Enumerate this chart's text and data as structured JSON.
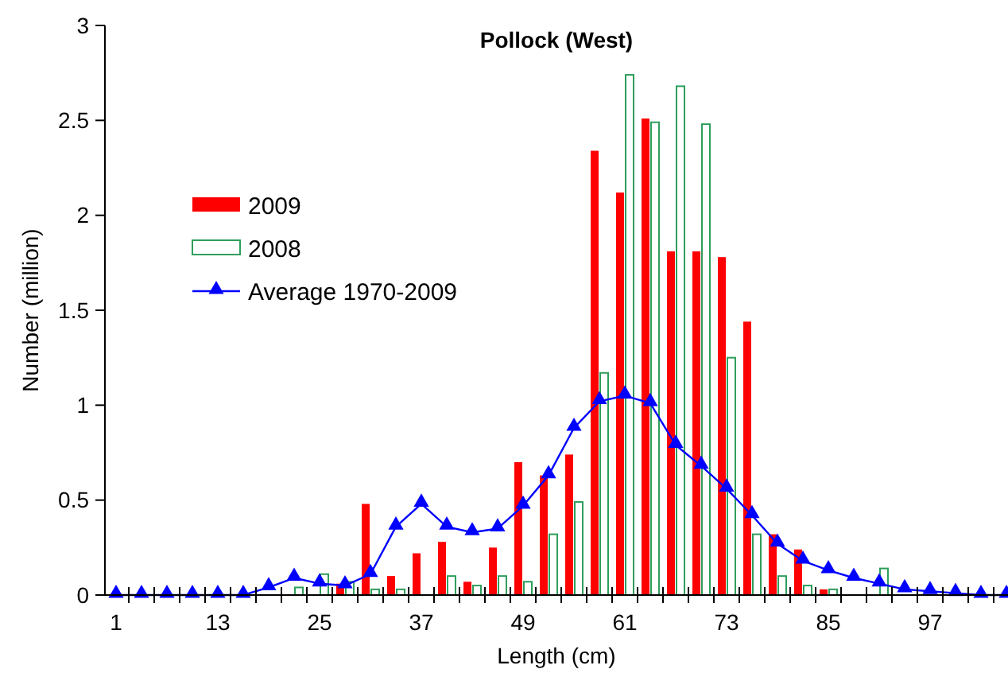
{
  "chart_data": {
    "type": "bar",
    "title": "Pollock (West)",
    "xlabel": "Length (cm)",
    "ylabel": "Number (million)",
    "categories": [
      "1",
      null,
      null,
      null,
      "13",
      null,
      null,
      null,
      "25",
      null,
      null,
      null,
      "37",
      null,
      null,
      null,
      "49",
      null,
      null,
      null,
      "61",
      null,
      null,
      null,
      "73",
      null,
      null,
      null,
      "85",
      null,
      null,
      null,
      "97",
      null,
      null,
      null
    ],
    "series": [
      {
        "name": "2009",
        "color": "#ff0000",
        "values": [
          0,
          0,
          0,
          0,
          0,
          0,
          0,
          0,
          0,
          0.06,
          0.48,
          0.1,
          0.22,
          0.28,
          0.07,
          0.25,
          0.7,
          0.63,
          0.74,
          2.34,
          2.12,
          2.51,
          1.81,
          1.81,
          1.78,
          1.44,
          0.32,
          0.24,
          0.03,
          0,
          0,
          0,
          0,
          0,
          0,
          0
        ]
      },
      {
        "name": "2008",
        "color": "#2e9e5b",
        "values": [
          0,
          0,
          0,
          0,
          0,
          0,
          0,
          0.04,
          0.11,
          0.07,
          0.03,
          0.03,
          0,
          0.1,
          0.05,
          0.1,
          0.07,
          0.32,
          0.49,
          1.17,
          2.74,
          2.49,
          2.68,
          2.48,
          1.25,
          0.32,
          0.1,
          0.05,
          0.03,
          0,
          0.14,
          0,
          0,
          0,
          0,
          0
        ]
      },
      {
        "name": "Average 1970-2009",
        "type": "line",
        "color": "#0000ff",
        "marker": "triangle",
        "values": [
          0,
          0,
          0,
          0,
          0,
          0,
          0.04,
          0.09,
          0.06,
          0.05,
          0.11,
          0.36,
          0.48,
          0.36,
          0.33,
          0.35,
          0.47,
          0.63,
          0.88,
          1.02,
          1.05,
          1.01,
          0.79,
          0.68,
          0.56,
          0.42,
          0.27,
          0.18,
          0.13,
          0.09,
          0.06,
          0.03,
          0.02,
          0.01,
          0,
          0
        ]
      }
    ],
    "ylim": [
      0,
      3
    ],
    "yticks": [
      0,
      0.5,
      1,
      1.5,
      2,
      2.5,
      3
    ],
    "grid": false,
    "legend": "top left"
  }
}
